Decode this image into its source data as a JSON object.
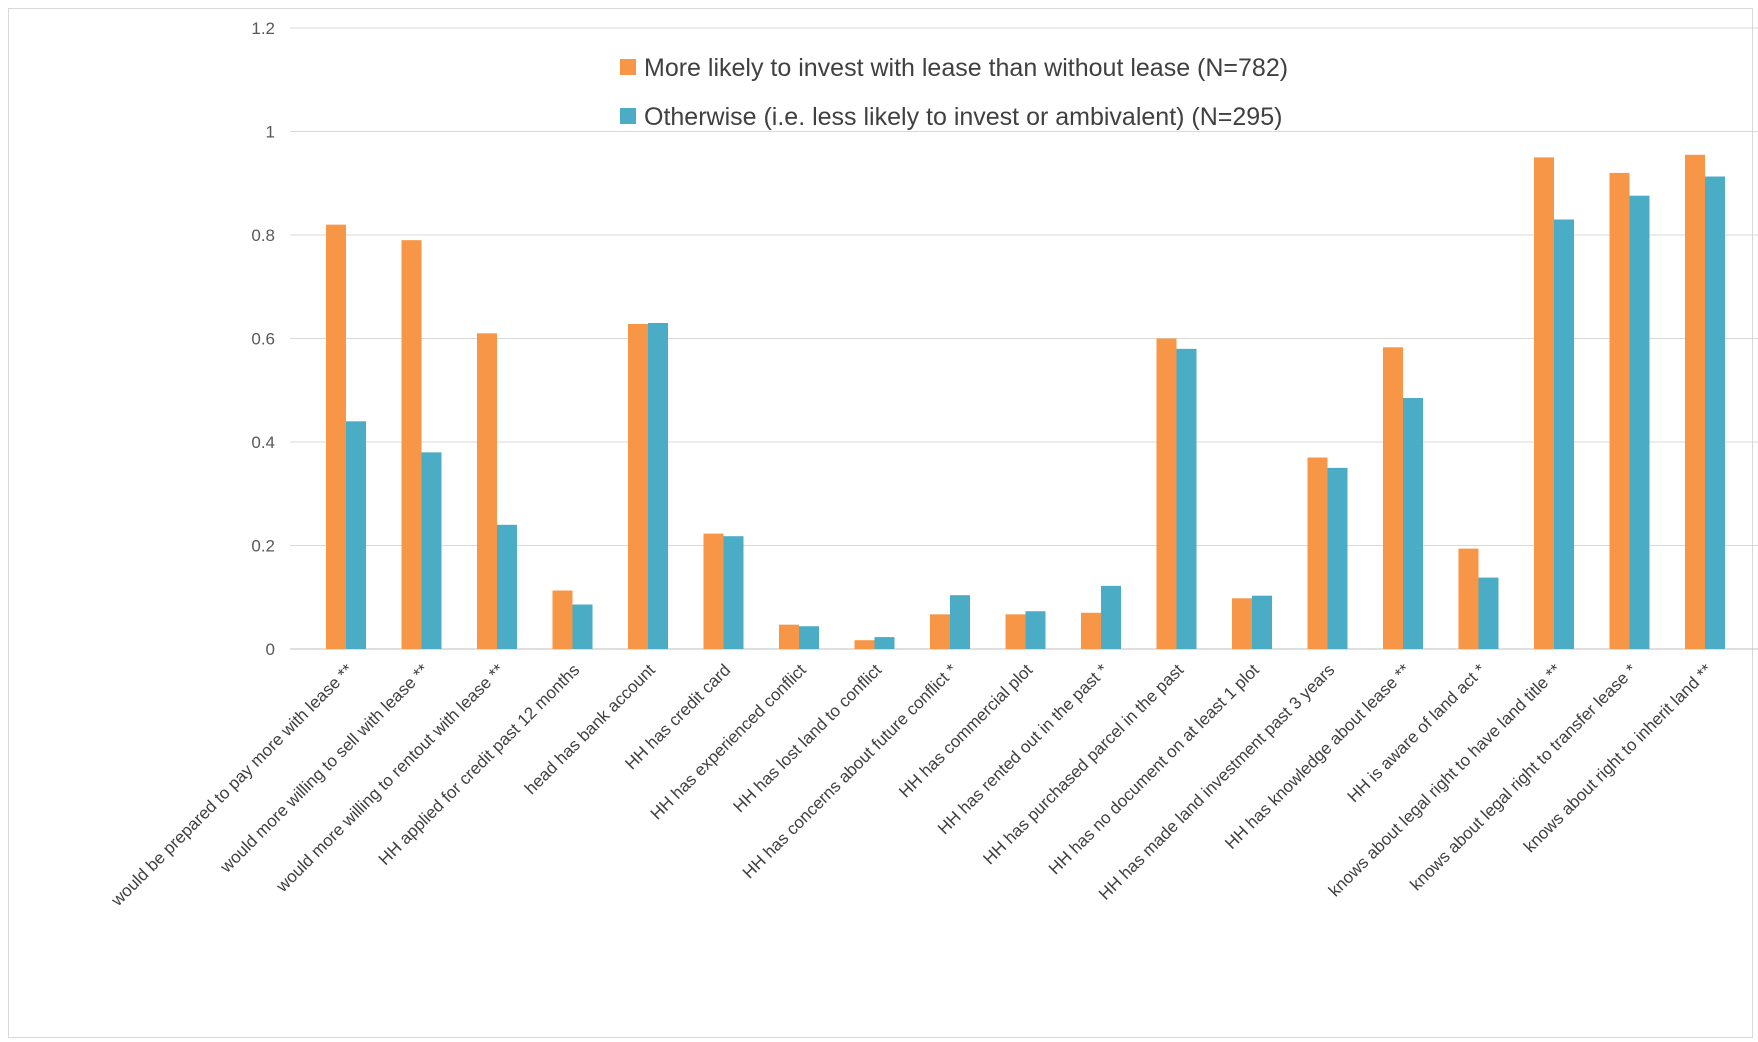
{
  "chart_data": {
    "type": "bar",
    "title": "",
    "xlabel": "",
    "ylabel": "",
    "ylim": [
      0,
      1.2
    ],
    "yticks": [
      0,
      0.2,
      0.4,
      0.6,
      0.8,
      1,
      1.2
    ],
    "ytick_labels": [
      "0",
      "0.2",
      "0.4",
      "0.6",
      "0.8",
      "1",
      "1.2"
    ],
    "grid": true,
    "legend_position": "top",
    "categories": [
      "would be prepared to pay more with lease **",
      "would more willing to sell with lease **",
      "would more willing to rentout with lease **",
      "HH applied for credit past 12 months",
      "head has bank account",
      "HH has credit card",
      "HH has experienced conflict",
      "HH has lost land to conflict",
      "HH has concerns about future conflict *",
      "HH has commercial plot",
      "HH has rented out in the past *",
      "HH has purchased parcel in the past",
      "HH has no document on at least 1 plot",
      "HH has made land investment past 3 years",
      "HH has knowledge about lease **",
      "HH is aware of land act *",
      "knows about legal right to have land title **",
      "knows about legal right to transfer lease *",
      "knows about right to inherit land **"
    ],
    "series": [
      {
        "name": "More likely to invest with lease than without lease (N=782)",
        "color": "#f79646",
        "values": [
          0.82,
          0.79,
          0.61,
          0.113,
          0.628,
          0.223,
          0.047,
          0.017,
          0.067,
          0.067,
          0.07,
          0.6,
          0.098,
          0.37,
          0.583,
          0.194,
          0.95,
          0.92,
          0.955
        ]
      },
      {
        "name": "Otherwise (i.e. less likely to invest or ambivalent) (N=295)",
        "color": "#4bacc6",
        "values": [
          0.44,
          0.38,
          0.24,
          0.086,
          0.63,
          0.218,
          0.044,
          0.023,
          0.104,
          0.073,
          0.122,
          0.58,
          0.103,
          0.35,
          0.485,
          0.138,
          0.83,
          0.876,
          0.913
        ]
      }
    ]
  }
}
